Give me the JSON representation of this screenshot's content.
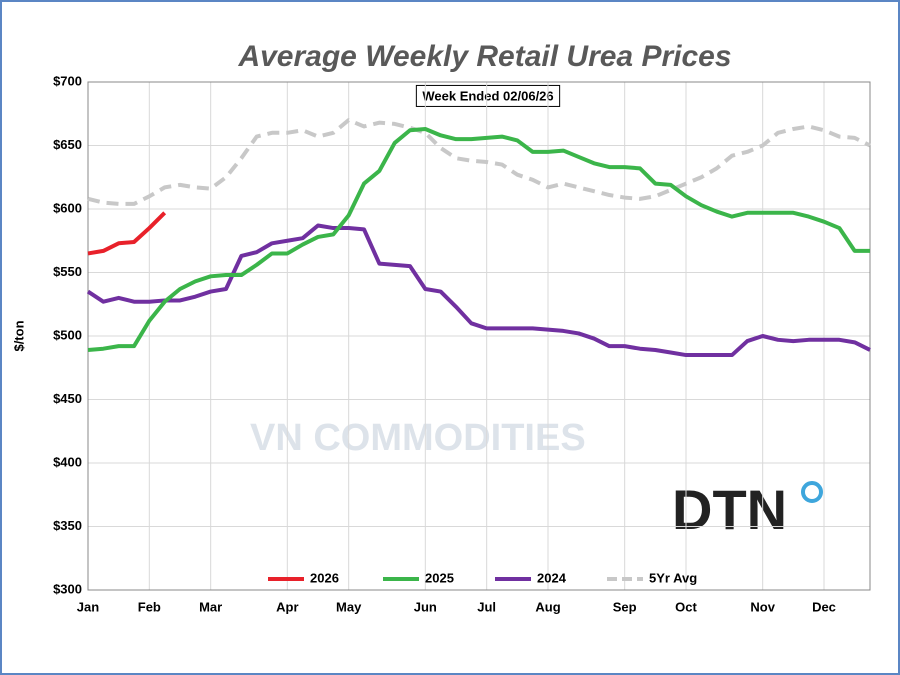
{
  "chart_data": {
    "type": "line",
    "title": "Average Weekly Retail Urea Prices",
    "subtitle": "Week Ended 02/06/26",
    "y_label": "$/ton",
    "watermark": "VN COMMODITIES",
    "logo": "DTN",
    "categories": [
      "Jan",
      null,
      null,
      null,
      "Feb",
      null,
      null,
      null,
      "Mar",
      null,
      null,
      null,
      null,
      "Apr",
      null,
      null,
      null,
      "May",
      null,
      null,
      null,
      null,
      "Jun",
      null,
      null,
      null,
      "Jul",
      null,
      null,
      null,
      "Aug",
      null,
      null,
      null,
      null,
      "Sep",
      null,
      null,
      null,
      "Oct",
      null,
      null,
      null,
      null,
      "Nov",
      null,
      null,
      null,
      "Dec",
      null,
      null,
      null
    ],
    "series": [
      {
        "name": "2026",
        "color": "#e8212a",
        "values": [
          565,
          567,
          573,
          574,
          585,
          597,
          null,
          null,
          null,
          null,
          null,
          null,
          null,
          null,
          null,
          null,
          null,
          null,
          null,
          null,
          null,
          null,
          null,
          null,
          null,
          null,
          null,
          null,
          null,
          null,
          null,
          null,
          null,
          null,
          null,
          null,
          null,
          null,
          null,
          null,
          null,
          null,
          null,
          null,
          null,
          null,
          null,
          null,
          null,
          null,
          null,
          null
        ]
      },
      {
        "name": "2025",
        "color": "#3bb54a",
        "values": [
          489,
          490,
          492,
          492,
          512,
          527,
          537,
          543,
          547,
          548,
          548,
          556,
          565,
          565,
          572,
          578,
          580,
          595,
          620,
          630,
          652,
          662,
          663,
          658,
          655,
          655,
          656,
          657,
          654,
          645,
          645,
          646,
          641,
          636,
          633,
          633,
          632,
          620,
          619,
          610,
          603,
          598,
          594,
          597,
          597,
          597,
          597,
          594,
          590,
          585,
          567,
          567
        ]
      },
      {
        "name": "2024",
        "color": "#7030a0",
        "values": [
          535,
          527,
          530,
          527,
          527,
          528,
          528,
          531,
          535,
          537,
          563,
          566,
          573,
          575,
          577,
          587,
          585,
          585,
          584,
          557,
          556,
          555,
          537,
          535,
          523,
          510,
          506,
          506,
          506,
          506,
          505,
          504,
          502,
          498,
          492,
          492,
          490,
          489,
          487,
          485,
          485,
          485,
          485,
          496,
          500,
          497,
          496,
          497,
          497,
          497,
          495,
          489
        ]
      },
      {
        "name": "5Yr Avg",
        "color": "#c8c8c8",
        "dash": true,
        "values": [
          608,
          605,
          604,
          604,
          610,
          617,
          619,
          617,
          616,
          625,
          640,
          657,
          660,
          660,
          662,
          657,
          660,
          670,
          665,
          668,
          667,
          664,
          660,
          648,
          640,
          638,
          637,
          635,
          627,
          623,
          617,
          620,
          617,
          614,
          611,
          609,
          608,
          610,
          615,
          620,
          625,
          632,
          642,
          645,
          650,
          660,
          663,
          665,
          662,
          657,
          656,
          650
        ]
      }
    ],
    "ylim": [
      300,
      700
    ],
    "yticks": [
      {
        "value": 300,
        "label": "$300"
      },
      {
        "value": 350,
        "label": "$350"
      },
      {
        "value": 400,
        "label": "$400"
      },
      {
        "value": 450,
        "label": "$450"
      },
      {
        "value": 500,
        "label": "$500"
      },
      {
        "value": 550,
        "label": "$550"
      },
      {
        "value": 600,
        "label": "$600"
      },
      {
        "value": 650,
        "label": "$650"
      },
      {
        "value": 700,
        "label": "$700"
      }
    ],
    "grid": true,
    "legend": "bottom"
  }
}
